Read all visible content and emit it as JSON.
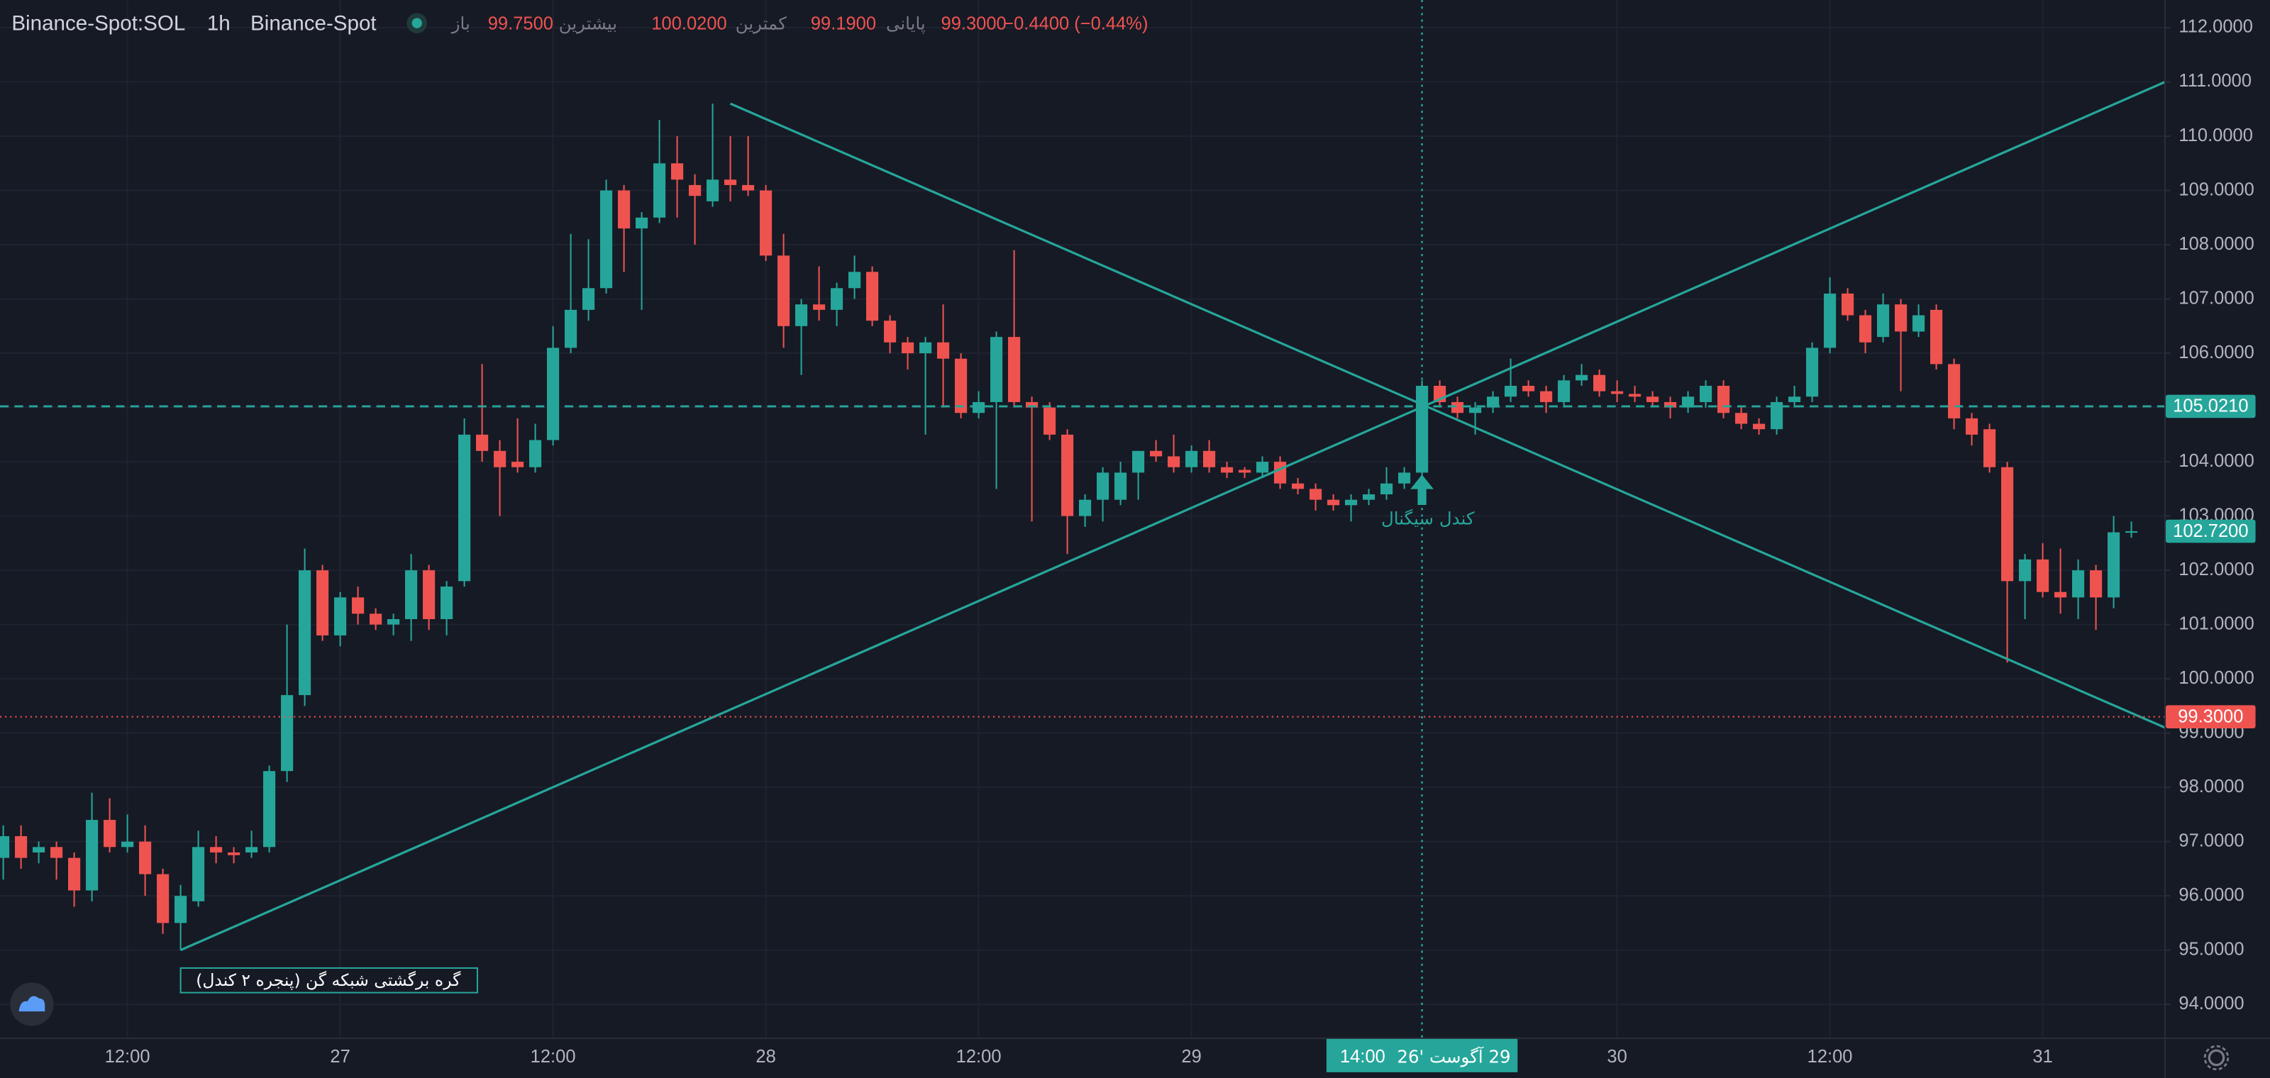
{
  "header": {
    "symbol": "Binance-Spot:SOL",
    "interval": "1h",
    "exchange": "Binance-Spot",
    "ohlc": [
      {
        "label": "باز",
        "value": "99.7500"
      },
      {
        "label": "بیشترین",
        "value": "100.0200"
      },
      {
        "label": "کمترین",
        "value": "99.1900"
      },
      {
        "label": "پایانی",
        "value": "99.3000"
      }
    ],
    "change": "−0.4400 (−0.44%)"
  },
  "chart_data": {
    "type": "candlestick",
    "up_color": "#26a69a",
    "down_color": "#ef5350",
    "grid": true,
    "categories": [
      null,
      null,
      null,
      null,
      null,
      null,
      null,
      "12:00",
      null,
      null,
      null,
      null,
      null,
      null,
      null,
      null,
      null,
      null,
      null,
      "27",
      null,
      null,
      null,
      null,
      null,
      null,
      null,
      null,
      null,
      null,
      null,
      "12:00",
      null,
      null,
      null,
      null,
      null,
      null,
      null,
      null,
      null,
      null,
      null,
      "28",
      null,
      null,
      null,
      null,
      null,
      null,
      null,
      null,
      null,
      null,
      null,
      "12:00",
      null,
      null,
      null,
      null,
      null,
      null,
      null,
      null,
      null,
      null,
      null,
      "29",
      null,
      null,
      null,
      null,
      null,
      null,
      null,
      null,
      null,
      null,
      null,
      null,
      null,
      null,
      null,
      null,
      null,
      null,
      null,
      null,
      null,
      null,
      null,
      "30",
      null,
      null,
      null,
      null,
      null,
      null,
      null,
      null,
      null,
      null,
      null,
      "12:00",
      null,
      null,
      null,
      null,
      null,
      null,
      null,
      null,
      null,
      null,
      null,
      "31",
      null,
      null,
      null,
      null,
      null
    ],
    "open": [
      96.7,
      97.1,
      96.8,
      96.9,
      96.7,
      96.1,
      97.4,
      96.9,
      97.0,
      96.4,
      95.5,
      95.9,
      96.9,
      96.8,
      96.8,
      96.9,
      98.3,
      99.7,
      102.0,
      100.8,
      101.5,
      101.2,
      101.0,
      101.1,
      102.0,
      101.1,
      101.8,
      104.5,
      104.2,
      104.0,
      103.9,
      104.4,
      106.1,
      106.8,
      107.2,
      109.0,
      108.3,
      108.5,
      109.5,
      109.1,
      108.8,
      109.2,
      109.1,
      109.0,
      107.8,
      106.5,
      106.9,
      106.8,
      107.2,
      107.5,
      106.6,
      106.2,
      106.0,
      106.2,
      105.9,
      104.9,
      105.1,
      106.3,
      105.1,
      105.0,
      104.5,
      103.0,
      103.3,
      103.3,
      103.8,
      104.2,
      104.1,
      103.9,
      104.2,
      103.9,
      103.85,
      103.8,
      104.0,
      103.6,
      103.5,
      103.3,
      103.2,
      103.3,
      103.4,
      103.6,
      103.8,
      105.4,
      105.1,
      104.9,
      105.0,
      105.2,
      105.4,
      105.3,
      105.1,
      105.5,
      105.6,
      105.3,
      105.25,
      105.2,
      105.1,
      105.0,
      105.1,
      105.4,
      104.9,
      104.7,
      104.6,
      105.1,
      105.2,
      106.1,
      107.1,
      106.7,
      106.3,
      106.9,
      106.4,
      106.8,
      105.8,
      104.8,
      104.6,
      103.9,
      101.8,
      102.2,
      101.6,
      101.5,
      102.0,
      101.5,
      102.7
    ],
    "high": [
      97.3,
      97.3,
      97.0,
      97.0,
      96.8,
      97.9,
      97.8,
      97.5,
      97.3,
      96.5,
      96.2,
      97.2,
      97.1,
      96.9,
      97.2,
      98.4,
      101.0,
      102.4,
      102.1,
      101.6,
      101.7,
      101.3,
      101.2,
      102.3,
      102.1,
      101.8,
      104.8,
      105.8,
      104.4,
      104.8,
      104.7,
      106.5,
      108.2,
      108.1,
      109.2,
      109.1,
      108.6,
      110.3,
      110.0,
      109.3,
      110.6,
      110.0,
      110.0,
      109.1,
      108.2,
      107.0,
      107.6,
      107.3,
      107.8,
      107.6,
      106.7,
      106.3,
      106.3,
      106.9,
      106.0,
      105.3,
      106.4,
      107.9,
      105.2,
      105.1,
      104.6,
      103.4,
      103.9,
      104.0,
      104.2,
      104.4,
      104.5,
      104.3,
      104.4,
      104.0,
      103.9,
      104.1,
      104.1,
      103.7,
      103.6,
      103.4,
      103.4,
      103.5,
      103.9,
      103.9,
      105.5,
      105.5,
      105.2,
      105.1,
      105.3,
      105.9,
      105.5,
      105.4,
      105.6,
      105.8,
      105.7,
      105.5,
      105.4,
      105.3,
      105.2,
      105.3,
      105.5,
      105.5,
      105.0,
      104.8,
      105.2,
      105.4,
      106.2,
      107.4,
      107.2,
      106.8,
      107.1,
      107.0,
      106.9,
      106.9,
      105.9,
      104.9,
      104.7,
      104.0,
      102.3,
      102.5,
      102.4,
      102.2,
      102.1,
      103.0,
      102.9
    ],
    "low": [
      96.3,
      96.5,
      96.6,
      96.3,
      95.8,
      95.9,
      96.8,
      96.8,
      96.0,
      95.3,
      95.0,
      95.8,
      96.6,
      96.6,
      96.7,
      96.8,
      98.1,
      99.5,
      100.7,
      100.6,
      101.0,
      100.9,
      100.8,
      100.7,
      100.9,
      100.8,
      101.7,
      104.0,
      103.0,
      103.8,
      103.8,
      104.3,
      106.0,
      106.6,
      107.1,
      107.5,
      106.8,
      108.4,
      108.5,
      108.0,
      108.7,
      108.8,
      108.9,
      107.7,
      106.1,
      105.6,
      106.6,
      106.5,
      107.0,
      106.5,
      106.0,
      105.7,
      104.5,
      105.0,
      104.8,
      104.8,
      103.5,
      105.0,
      102.9,
      104.4,
      102.3,
      102.8,
      102.9,
      103.2,
      103.3,
      104.0,
      103.8,
      103.8,
      103.8,
      103.7,
      103.7,
      103.7,
      103.5,
      103.4,
      103.1,
      103.1,
      102.9,
      103.2,
      103.3,
      103.5,
      103.7,
      105.0,
      104.8,
      104.5,
      104.9,
      105.1,
      105.2,
      104.9,
      105.0,
      105.4,
      105.2,
      105.1,
      105.1,
      105.0,
      104.8,
      104.9,
      105.0,
      104.8,
      104.6,
      104.5,
      104.5,
      105.0,
      105.1,
      106.0,
      106.6,
      106.0,
      106.2,
      105.3,
      106.3,
      105.7,
      104.6,
      104.3,
      103.8,
      100.3,
      101.1,
      101.5,
      101.2,
      101.1,
      100.9,
      101.3,
      102.6
    ],
    "close": [
      97.1,
      96.7,
      96.9,
      96.7,
      96.1,
      97.4,
      96.9,
      97.0,
      96.4,
      95.5,
      96.0,
      96.9,
      96.8,
      96.75,
      96.9,
      98.3,
      99.7,
      102.0,
      100.8,
      101.5,
      101.2,
      101.0,
      101.1,
      102.0,
      101.1,
      101.7,
      104.5,
      104.2,
      103.9,
      103.9,
      104.4,
      106.1,
      106.8,
      107.2,
      109.0,
      108.3,
      108.5,
      109.5,
      109.2,
      108.9,
      109.2,
      109.1,
      109.0,
      107.8,
      106.5,
      106.9,
      106.8,
      107.2,
      107.5,
      106.6,
      106.2,
      106.0,
      106.2,
      105.9,
      104.9,
      105.1,
      106.3,
      105.1,
      105.0,
      104.5,
      103.0,
      103.3,
      103.8,
      103.8,
      104.2,
      104.1,
      103.9,
      104.2,
      103.9,
      103.8,
      103.8,
      104.0,
      103.6,
      103.5,
      103.3,
      103.2,
      103.3,
      103.4,
      103.6,
      103.8,
      105.4,
      105.1,
      104.9,
      105.0,
      105.2,
      105.4,
      105.3,
      105.1,
      105.5,
      105.6,
      105.3,
      105.25,
      105.2,
      105.1,
      105.0,
      105.2,
      105.4,
      104.9,
      104.7,
      104.6,
      105.1,
      105.2,
      106.1,
      107.1,
      106.7,
      106.2,
      106.9,
      106.4,
      106.7,
      105.8,
      104.8,
      104.5,
      103.9,
      101.8,
      102.2,
      101.6,
      101.5,
      102.0,
      101.5,
      102.7,
      102.72
    ],
    "ylim": [
      93.39,
      112.51
    ],
    "yticks": [
      {
        "value": 94,
        "label": "94.0000"
      },
      {
        "value": 95,
        "label": "95.0000"
      },
      {
        "value": 96,
        "label": "96.0000"
      },
      {
        "value": 97,
        "label": "97.0000"
      },
      {
        "value": 98,
        "label": "98.0000"
      },
      {
        "value": 99,
        "label": "99.0000"
      },
      {
        "value": 100,
        "label": "100.0000"
      },
      {
        "value": 101,
        "label": "101.0000"
      },
      {
        "value": 102,
        "label": "102.0000"
      },
      {
        "value": 103,
        "label": "103.0000"
      },
      {
        "value": 104,
        "label": "104.0000"
      },
      {
        "value": 105,
        "label": "105.0000"
      },
      {
        "value": 106,
        "label": "106.0000"
      },
      {
        "value": 107,
        "label": "107.0000"
      },
      {
        "value": 108,
        "label": "108.0000"
      },
      {
        "value": 109,
        "label": "109.0000"
      },
      {
        "value": 110,
        "label": "110.0000"
      },
      {
        "value": 111,
        "label": "111.0000"
      },
      {
        "value": 112,
        "label": "112.0000"
      }
    ],
    "trend_lines": [
      {
        "color": "#26a69a",
        "x": [
          10,
          121.9
        ],
        "y": [
          95.0,
          111.0
        ]
      },
      {
        "color": "#26a69a",
        "x": [
          41,
          121.9
        ],
        "y": [
          110.6,
          99.1
        ]
      }
    ],
    "price_lines": [
      {
        "value": 105.021,
        "label": "105.0210",
        "color": "#26a69a",
        "style": "dashed"
      },
      {
        "value": 99.3,
        "label": "99.3000",
        "color": "#ef5350",
        "style": "dotted"
      },
      {
        "value": 102.72,
        "label": "102.7200",
        "color": "#26a69a",
        "style": "none"
      }
    ],
    "crosshair": {
      "x": 80,
      "time": "14:00",
      "date": "29 آگوست '26",
      "color": "#26a69a"
    },
    "annotations": {
      "pivot": "گره برگشتی شبکه گن (پنجره ۲ کندل)",
      "signal": "کندل سیگنال"
    }
  }
}
